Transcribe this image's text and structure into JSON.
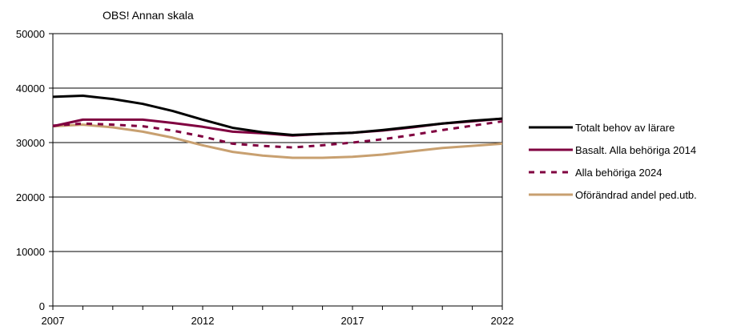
{
  "chart_data": {
    "type": "line",
    "title": "OBS! Annan skala",
    "xlabel": "",
    "ylabel": "",
    "x": [
      2007,
      2008,
      2009,
      2010,
      2011,
      2012,
      2013,
      2014,
      2015,
      2016,
      2017,
      2018,
      2019,
      2020,
      2021,
      2022
    ],
    "xlim": [
      2007,
      2022
    ],
    "ylim": [
      0,
      50000
    ],
    "x_ticks": [
      2007,
      2012,
      2017,
      2022
    ],
    "y_ticks": [
      0,
      10000,
      20000,
      30000,
      40000,
      50000
    ],
    "grid": "horizontal",
    "legend_position": "right",
    "series": [
      {
        "name": "Totalt behov av lärare",
        "color": "#000000",
        "dash": "solid",
        "values": [
          38400,
          38600,
          38000,
          37100,
          35800,
          34200,
          32700,
          31900,
          31400,
          31600,
          31800,
          32300,
          32900,
          33500,
          34000,
          34400
        ]
      },
      {
        "name": "Basalt. Alla behöriga 2014",
        "color": "#800040",
        "dash": "solid",
        "values": [
          33000,
          34200,
          34200,
          34200,
          33600,
          32900,
          32000,
          31700,
          31300,
          31600,
          31800,
          32200,
          32800,
          33500,
          33900,
          34400
        ]
      },
      {
        "name": "Alla behöriga 2024",
        "color": "#800040",
        "dash": "dashed",
        "values": [
          33100,
          33500,
          33300,
          33000,
          32200,
          31100,
          29800,
          29400,
          29100,
          29500,
          30000,
          30600,
          31400,
          32300,
          33100,
          33900
        ]
      },
      {
        "name": "Oförändrad andel ped.utb.",
        "color": "#C8A070",
        "dash": "solid",
        "values": [
          33000,
          33300,
          32800,
          32000,
          30900,
          29500,
          28300,
          27600,
          27200,
          27200,
          27400,
          27800,
          28400,
          29000,
          29400,
          29800
        ]
      }
    ]
  }
}
